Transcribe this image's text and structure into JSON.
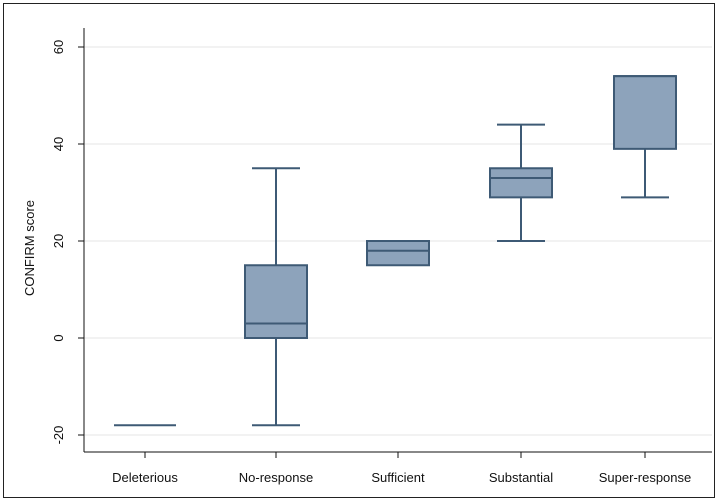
{
  "chart_data": {
    "type": "box",
    "title": "",
    "xlabel": "",
    "ylabel": "CONFIRM score",
    "ylim": [
      -22,
      63
    ],
    "yticks": [
      -20,
      0,
      20,
      40,
      60
    ],
    "ytick_labels": [
      "-20",
      "0",
      "20",
      "40",
      "60"
    ],
    "grid": true,
    "legend": "none",
    "colors": {
      "box_fill": "#8da3bb",
      "box_stroke": "#3e5a75",
      "grid": "#e6e6e6",
      "axis": "#111111"
    },
    "categories": [
      "Deleterious",
      "No-response",
      "Sufficient",
      "Substantial",
      "Super-response"
    ],
    "boxes": [
      {
        "category": "Deleterious",
        "whisker_low": -18,
        "q1": -18,
        "median": -18,
        "q3": -18,
        "whisker_high": -18
      },
      {
        "category": "No-response",
        "whisker_low": -18,
        "q1": 0,
        "median": 3,
        "q3": 15,
        "whisker_high": 35
      },
      {
        "category": "Sufficient",
        "whisker_low": 15,
        "q1": 15,
        "median": 18,
        "q3": 20,
        "whisker_high": 20
      },
      {
        "category": "Substantial",
        "whisker_low": 20,
        "q1": 29,
        "median": 33,
        "q3": 35,
        "whisker_high": 44
      },
      {
        "category": "Super-response",
        "whisker_low": 29,
        "q1": 39,
        "median": 54,
        "q3": 54,
        "whisker_high": 54
      }
    ]
  }
}
